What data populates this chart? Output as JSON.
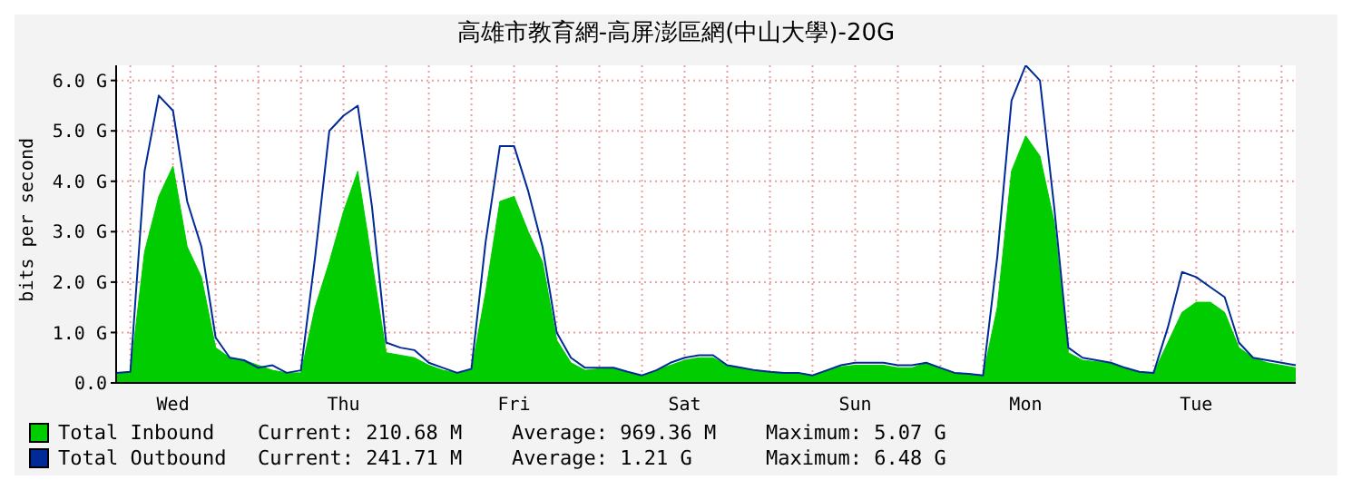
{
  "chart_data": {
    "type": "area",
    "title": "高雄市教育網-高屏澎區網(中山大學)-20G",
    "ylabel": "bits per second",
    "categories": [
      null,
      null,
      null,
      null,
      "Wed",
      null,
      null,
      null,
      null,
      null,
      null,
      null,
      null,
      null,
      null,
      null,
      "Thu",
      null,
      null,
      null,
      null,
      null,
      null,
      null,
      null,
      null,
      null,
      null,
      "Fri",
      null,
      null,
      null,
      null,
      null,
      null,
      null,
      null,
      null,
      null,
      null,
      "Sat",
      null,
      null,
      null,
      null,
      null,
      null,
      null,
      null,
      null,
      null,
      null,
      "Sun",
      null,
      null,
      null,
      null,
      null,
      null,
      null,
      null,
      null,
      null,
      null,
      "Mon",
      null,
      null,
      null,
      null,
      null,
      null,
      null,
      null,
      null,
      null,
      null,
      "Tue",
      null,
      null,
      null,
      null,
      null,
      null,
      null
    ],
    "series": [
      {
        "name": "Total Inbound",
        "color": "#00cc00",
        "values": [
          0.2,
          0.2,
          2.6,
          3.7,
          4.3,
          2.7,
          2.1,
          0.7,
          0.5,
          0.45,
          0.35,
          0.25,
          0.2,
          0.2,
          1.5,
          2.4,
          3.4,
          4.2,
          2.4,
          0.6,
          0.55,
          0.5,
          0.35,
          0.25,
          0.2,
          0.25,
          1.8,
          3.6,
          3.7,
          3.0,
          2.4,
          0.85,
          0.4,
          0.25,
          0.28,
          0.3,
          0.2,
          0.15,
          0.25,
          0.35,
          0.45,
          0.5,
          0.5,
          0.35,
          0.3,
          0.25,
          0.22,
          0.2,
          0.2,
          0.15,
          0.25,
          0.32,
          0.35,
          0.35,
          0.35,
          0.3,
          0.3,
          0.4,
          0.3,
          0.2,
          0.18,
          0.15,
          1.5,
          4.2,
          4.9,
          4.5,
          3.2,
          0.6,
          0.45,
          0.42,
          0.4,
          0.3,
          0.22,
          0.2,
          0.8,
          1.4,
          1.6,
          1.6,
          1.4,
          0.7,
          0.5,
          0.4,
          0.35,
          0.3
        ]
      },
      {
        "name": "Total Outbound",
        "type": "line",
        "color": "#002a97",
        "values": [
          0.2,
          0.22,
          4.2,
          5.7,
          5.4,
          3.6,
          2.7,
          0.9,
          0.5,
          0.45,
          0.3,
          0.35,
          0.2,
          0.25,
          2.5,
          5.0,
          5.3,
          5.5,
          3.5,
          0.8,
          0.7,
          0.65,
          0.4,
          0.3,
          0.2,
          0.28,
          2.8,
          4.7,
          4.7,
          3.8,
          2.7,
          1.0,
          0.5,
          0.3,
          0.3,
          0.3,
          0.22,
          0.15,
          0.25,
          0.4,
          0.5,
          0.55,
          0.55,
          0.35,
          0.3,
          0.25,
          0.22,
          0.2,
          0.2,
          0.15,
          0.25,
          0.35,
          0.4,
          0.4,
          0.4,
          0.35,
          0.35,
          0.4,
          0.3,
          0.2,
          0.18,
          0.15,
          2.5,
          5.6,
          6.3,
          6.0,
          3.5,
          0.7,
          0.5,
          0.45,
          0.4,
          0.3,
          0.22,
          0.2,
          1.1,
          2.2,
          2.1,
          1.9,
          1.7,
          0.8,
          0.5,
          0.45,
          0.4,
          0.35
        ]
      }
    ],
    "ylim": [
      0,
      6.3
    ],
    "yticks": [
      {
        "value": 0,
        "label": "0.0"
      },
      {
        "value": 1,
        "label": "1.0 G"
      },
      {
        "value": 2,
        "label": "2.0 G"
      },
      {
        "value": 3,
        "label": "3.0 G"
      },
      {
        "value": 4,
        "label": "4.0 G"
      },
      {
        "value": 5,
        "label": "5.0 G"
      },
      {
        "value": 6,
        "label": "6.0 G"
      }
    ],
    "grid": true,
    "legend": "bottom",
    "annotations": [
      "Current: 210.68 M",
      "Average: 969.36 M",
      "Maximum: 5.07 G",
      "Current: 241.71 M",
      "Average: 1.21 G",
      "Maximum: 6.48 G"
    ]
  }
}
